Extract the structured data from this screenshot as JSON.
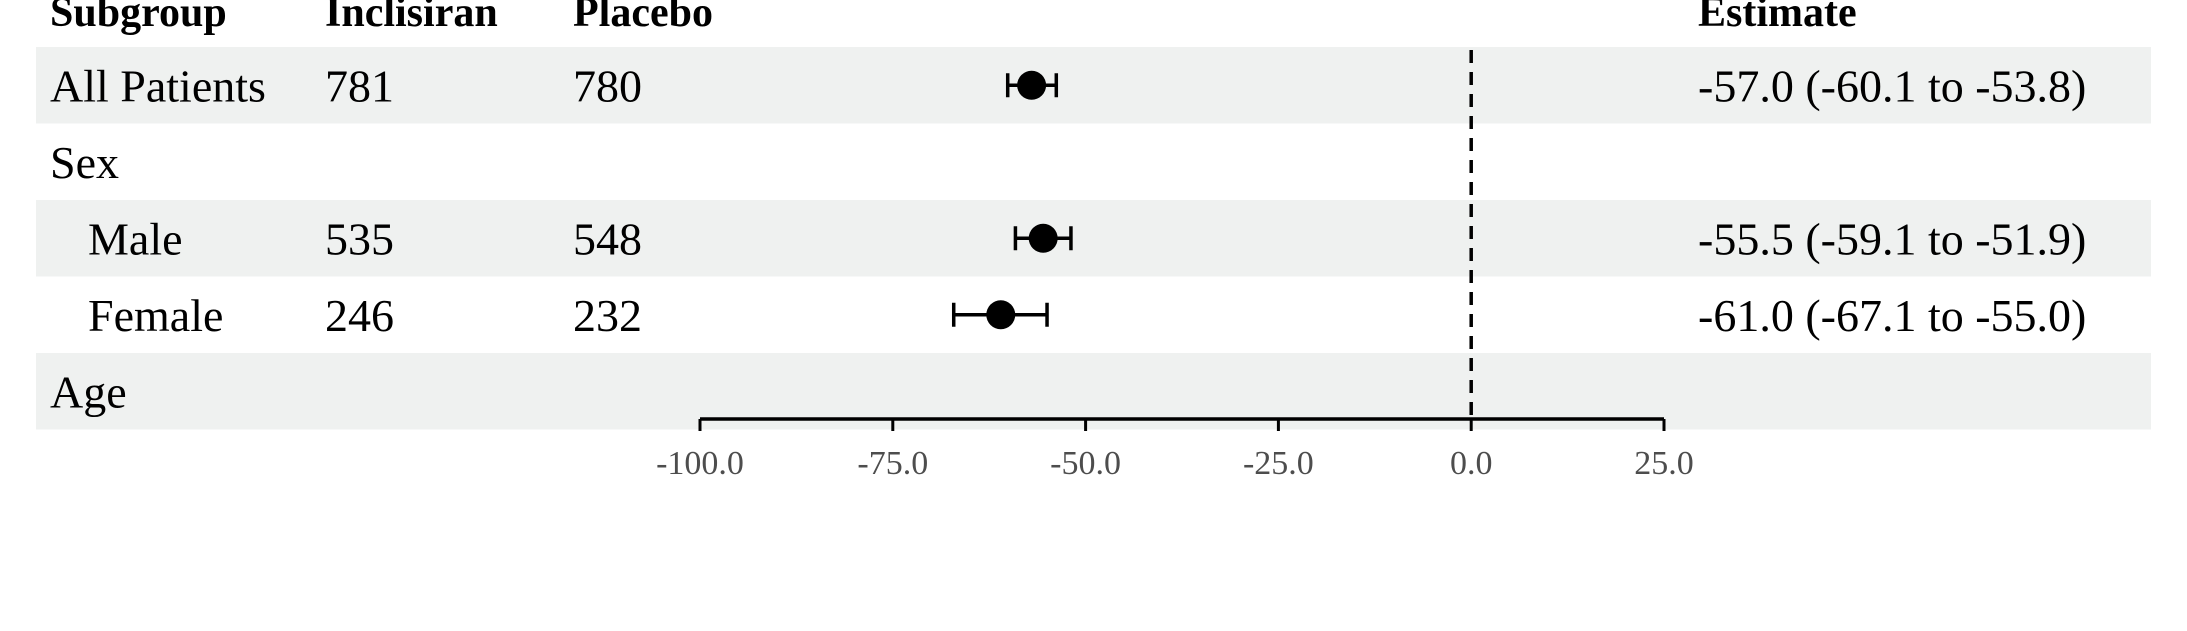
{
  "chart_data": {
    "type": "forest",
    "columns": [
      "Subgroup",
      "Inclisiran",
      "Placebo",
      "Estimate"
    ],
    "rows": [
      {
        "subgroup": "All Patients",
        "indent": false,
        "inclisiran": "781",
        "placebo": "780",
        "estimate_text": "-57.0 (-60.1 to -53.8)",
        "estimate": -57.0,
        "lower": -60.1,
        "upper": -53.8,
        "shaded": true
      },
      {
        "subgroup": "Sex",
        "indent": false,
        "inclisiran": "",
        "placebo": "",
        "estimate_text": "",
        "estimate": null,
        "lower": null,
        "upper": null,
        "shaded": false
      },
      {
        "subgroup": "Male",
        "indent": true,
        "inclisiran": "535",
        "placebo": "548",
        "estimate_text": "-55.5 (-59.1 to -51.9)",
        "estimate": -55.5,
        "lower": -59.1,
        "upper": -51.9,
        "shaded": true
      },
      {
        "subgroup": "Female",
        "indent": true,
        "inclisiran": "246",
        "placebo": "232",
        "estimate_text": "-61.0 (-67.1 to -55.0)",
        "estimate": -61.0,
        "lower": -67.1,
        "upper": -55.0,
        "shaded": false
      },
      {
        "subgroup": "Age",
        "indent": false,
        "inclisiran": "",
        "placebo": "",
        "estimate_text": "",
        "estimate": null,
        "lower": null,
        "upper": null,
        "shaded": true
      }
    ],
    "x_ticks": [
      -100,
      -75,
      -50,
      -25,
      0,
      25
    ],
    "x_tick_labels": [
      "-100.0",
      "-75.0",
      "-50.0",
      "-25.0",
      "0.0",
      "25.0"
    ],
    "xlim": [
      -100,
      25
    ],
    "reference_line": 0,
    "colors": {
      "row_shade": "#eff1f0",
      "mark": "#000000",
      "tick_label": "#4d4d4d"
    }
  }
}
